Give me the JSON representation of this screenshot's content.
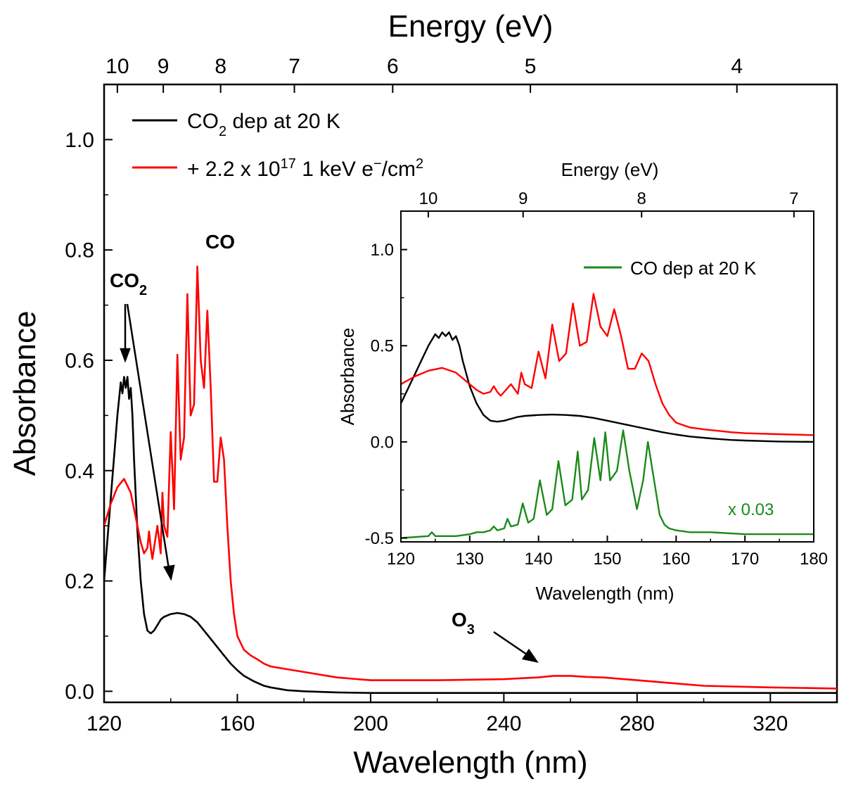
{
  "chart_data": [
    {
      "type": "line",
      "id": "main",
      "xlabel": "Wavelength (nm)",
      "ylabel": "Absorbance",
      "top_axis_label": "Energy (eV)",
      "xlim": [
        120,
        340
      ],
      "ylim": [
        -0.02,
        1.1
      ],
      "x_ticks": [
        120,
        160,
        200,
        240,
        280,
        320
      ],
      "y_ticks": [
        0.0,
        0.2,
        0.4,
        0.6,
        0.8,
        1.0
      ],
      "y_tick_labels": [
        "0.0",
        "0.2",
        "0.4",
        "0.6",
        "0.8",
        "1.0"
      ],
      "energy_ticks": [
        10,
        9,
        8,
        7,
        6,
        5,
        4
      ],
      "legend_position": "top-left",
      "series": [
        {
          "name": "CO2 dep at 20 K",
          "legend_main": "CO",
          "legend_sub": "2",
          "legend_rest": " dep at 20 K",
          "color": "#000000",
          "x": [
            120,
            122,
            124,
            125,
            125.5,
            126,
            126.5,
            127,
            127.5,
            128,
            128.5,
            129,
            130,
            131,
            132,
            133,
            134,
            135,
            136,
            137,
            138,
            140,
            142,
            144,
            146,
            148,
            150,
            152,
            154,
            156,
            158,
            160,
            162,
            165,
            168,
            170,
            175,
            180,
            190,
            200,
            220,
            240,
            260,
            280,
            300,
            320,
            340
          ],
          "y": [
            0.2,
            0.35,
            0.5,
            0.56,
            0.54,
            0.57,
            0.55,
            0.57,
            0.53,
            0.55,
            0.5,
            0.42,
            0.29,
            0.2,
            0.14,
            0.11,
            0.105,
            0.11,
            0.12,
            0.13,
            0.135,
            0.14,
            0.142,
            0.14,
            0.135,
            0.125,
            0.11,
            0.095,
            0.08,
            0.065,
            0.05,
            0.038,
            0.028,
            0.018,
            0.01,
            0.007,
            0.002,
            0.0,
            -0.002,
            -0.003,
            -0.003,
            -0.003,
            -0.003,
            -0.003,
            -0.003,
            -0.003,
            -0.003
          ]
        },
        {
          "name": "+ 2.2 x 10^17 1 keV e-/cm2",
          "legend_main": "+ 2.2 x 10",
          "legend_sup": "17",
          "legend_rest1": " 1 keV e",
          "legend_sup2": "−",
          "legend_rest2": "/cm",
          "legend_sup3": "2",
          "color": "#ff0000",
          "x": [
            120,
            122,
            124,
            126,
            128,
            130,
            131,
            132,
            133,
            133.5,
            134,
            134.5,
            135,
            136,
            137,
            137.5,
            138,
            139,
            140,
            141,
            142,
            143,
            144,
            145,
            146,
            147,
            148,
            149,
            150,
            151,
            152,
            153,
            154,
            155,
            156,
            157,
            158,
            159,
            160,
            162,
            164,
            166,
            168,
            170,
            175,
            180,
            190,
            200,
            220,
            240,
            250,
            255,
            260,
            265,
            270,
            280,
            290,
            300,
            320,
            340
          ],
          "y": [
            0.3,
            0.34,
            0.37,
            0.385,
            0.36,
            0.3,
            0.27,
            0.25,
            0.26,
            0.29,
            0.26,
            0.24,
            0.26,
            0.3,
            0.25,
            0.36,
            0.3,
            0.28,
            0.47,
            0.33,
            0.61,
            0.42,
            0.46,
            0.72,
            0.5,
            0.52,
            0.77,
            0.6,
            0.55,
            0.69,
            0.55,
            0.38,
            0.38,
            0.46,
            0.42,
            0.3,
            0.2,
            0.14,
            0.1,
            0.075,
            0.065,
            0.058,
            0.05,
            0.045,
            0.04,
            0.035,
            0.025,
            0.02,
            0.02,
            0.022,
            0.025,
            0.028,
            0.028,
            0.026,
            0.025,
            0.02,
            0.015,
            0.01,
            0.007,
            0.005
          ]
        }
      ],
      "annotations": [
        {
          "id": "co2",
          "text": "CO",
          "sub": "2"
        },
        {
          "id": "co",
          "text": "CO"
        },
        {
          "id": "o3",
          "text": "O",
          "sub": "3"
        }
      ]
    },
    {
      "type": "line",
      "id": "inset",
      "xlabel": "Wavelength (nm)",
      "ylabel": "Absorbance",
      "top_axis_label": "Energy (eV)",
      "xlim": [
        120,
        180
      ],
      "ylim": [
        -0.52,
        1.2
      ],
      "x_ticks": [
        120,
        130,
        140,
        150,
        160,
        170,
        180
      ],
      "y_ticks": [
        -0.5,
        0.0,
        0.5,
        1.0
      ],
      "y_tick_labels": [
        "-0.5",
        "0.0",
        "0.5",
        "1.0"
      ],
      "energy_ticks": [
        10,
        9,
        8,
        7
      ],
      "legend_position": "top-right",
      "scale_note": "x 0.03",
      "series": [
        {
          "name": "CO2 dep at 20 K",
          "color": "#000000",
          "x": [
            120,
            122,
            124,
            125,
            125.5,
            126,
            126.5,
            127,
            127.5,
            128,
            128.5,
            129,
            130,
            131,
            132,
            133,
            134,
            135,
            136,
            137,
            138,
            140,
            142,
            144,
            146,
            148,
            150,
            152,
            154,
            156,
            158,
            160,
            162,
            165,
            168,
            170,
            175,
            180
          ],
          "y": [
            0.2,
            0.35,
            0.5,
            0.56,
            0.54,
            0.57,
            0.55,
            0.57,
            0.53,
            0.55,
            0.5,
            0.42,
            0.29,
            0.2,
            0.14,
            0.11,
            0.105,
            0.11,
            0.12,
            0.13,
            0.135,
            0.14,
            0.142,
            0.14,
            0.135,
            0.125,
            0.11,
            0.095,
            0.08,
            0.065,
            0.05,
            0.038,
            0.028,
            0.018,
            0.01,
            0.007,
            0.002,
            0.0
          ]
        },
        {
          "name": "+ 2.2 x 10^17 1 keV e-/cm2",
          "color": "#ff0000",
          "x": [
            120,
            122,
            124,
            126,
            128,
            130,
            131,
            132,
            133,
            133.5,
            134,
            134.5,
            135,
            136,
            137,
            137.5,
            138,
            139,
            140,
            141,
            142,
            143,
            144,
            145,
            146,
            147,
            148,
            149,
            150,
            151,
            152,
            153,
            154,
            155,
            156,
            157,
            158,
            159,
            160,
            162,
            164,
            166,
            168,
            170,
            175,
            180
          ],
          "y": [
            0.3,
            0.34,
            0.37,
            0.385,
            0.36,
            0.3,
            0.27,
            0.25,
            0.26,
            0.29,
            0.26,
            0.24,
            0.26,
            0.3,
            0.25,
            0.36,
            0.3,
            0.28,
            0.47,
            0.33,
            0.61,
            0.42,
            0.46,
            0.72,
            0.5,
            0.52,
            0.77,
            0.6,
            0.55,
            0.69,
            0.55,
            0.38,
            0.38,
            0.46,
            0.42,
            0.3,
            0.2,
            0.14,
            0.1,
            0.075,
            0.065,
            0.058,
            0.05,
            0.045,
            0.04,
            0.035
          ]
        },
        {
          "name": "CO dep at 20 K",
          "color": "#1a8a1a",
          "x": [
            120,
            124,
            124.5,
            125,
            128,
            130,
            131,
            132,
            133,
            133.5,
            134,
            135,
            135.5,
            136,
            137,
            137.7,
            138.5,
            139.3,
            140.2,
            141.2,
            142,
            142.9,
            143.9,
            144.9,
            145.7,
            146.3,
            147.2,
            148.1,
            149,
            149.7,
            150.4,
            151.4,
            152.3,
            153.2,
            154.3,
            155.2,
            155.9,
            156.8,
            157.6,
            158.3,
            159,
            160,
            162,
            165,
            170,
            175,
            180
          ],
          "y": [
            -0.5,
            -0.49,
            -0.47,
            -0.49,
            -0.49,
            -0.48,
            -0.47,
            -0.47,
            -0.46,
            -0.44,
            -0.46,
            -0.45,
            -0.4,
            -0.44,
            -0.43,
            -0.32,
            -0.42,
            -0.4,
            -0.2,
            -0.38,
            -0.35,
            -0.1,
            -0.33,
            -0.3,
            -0.05,
            -0.3,
            -0.25,
            0.02,
            -0.2,
            0.05,
            -0.2,
            -0.15,
            0.06,
            -0.15,
            -0.35,
            -0.2,
            0.0,
            -0.2,
            -0.38,
            -0.43,
            -0.45,
            -0.46,
            -0.47,
            -0.47,
            -0.48,
            -0.48,
            -0.48
          ]
        }
      ]
    }
  ]
}
